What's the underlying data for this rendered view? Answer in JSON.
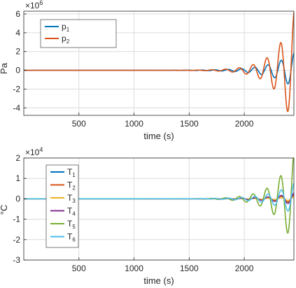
{
  "chart_data": [
    {
      "type": "line",
      "ylabel": "Pa",
      "xlabel": "time (s)",
      "y_multiplier": "×10",
      "y_exponent": "6",
      "xlim": [
        0,
        2450
      ],
      "ylim": [
        -4.8,
        6.3
      ],
      "x_ticks": [
        500,
        1000,
        1500,
        2000
      ],
      "y_ticks": [
        -4,
        -2,
        0,
        2,
        4,
        6
      ],
      "grid": true,
      "legend_position": "top-left",
      "series": [
        {
          "name": "p",
          "sub": "1",
          "color": "#0072BD",
          "envelope": {
            "start_time": 800,
            "tau": 200,
            "amplitude_at_end": 1.9
          },
          "period": 120,
          "x_end": 2450
        },
        {
          "name": "p",
          "sub": "2",
          "color": "#D95319",
          "envelope": {
            "start_time": 800,
            "tau": 158,
            "amplitude_at_end": 6.3
          },
          "period": 125,
          "x_end": 2450
        }
      ]
    },
    {
      "type": "line",
      "ylabel": "°C",
      "xlabel": "time (s)",
      "y_multiplier": "×10",
      "y_exponent": "4",
      "xlim": [
        0,
        2450
      ],
      "ylim": [
        -3,
        2
      ],
      "x_ticks": [
        500,
        1000,
        1500,
        2000
      ],
      "y_ticks": [
        -3,
        -2,
        -1,
        0,
        1,
        2
      ],
      "grid": true,
      "legend_position": "left",
      "series": [
        {
          "name": "T",
          "sub": "1",
          "color": "#0072BD",
          "envelope": {
            "start_time": 1200,
            "tau": 200,
            "amplitude_at_end": 0.15
          },
          "period": 120,
          "x_end": 2450
        },
        {
          "name": "T",
          "sub": "2",
          "color": "#D95319",
          "envelope": {
            "start_time": 1200,
            "tau": 200,
            "amplitude_at_end": 0.2
          },
          "period": 120,
          "x_end": 2450
        },
        {
          "name": "T",
          "sub": "3",
          "color": "#EDB120",
          "envelope": {
            "start_time": 1200,
            "tau": 200,
            "amplitude_at_end": 0.12
          },
          "period": 120,
          "x_end": 2450
        },
        {
          "name": "T",
          "sub": "4",
          "color": "#7E2F8E",
          "envelope": {
            "start_time": 1200,
            "tau": 200,
            "amplitude_at_end": 0.3
          },
          "period": 120,
          "x_end": 2450
        },
        {
          "name": "T",
          "sub": "5",
          "color": "#77AC30",
          "envelope": {
            "start_time": 900,
            "tau": 160,
            "amplitude_at_end": 2.4
          },
          "period": 125,
          "x_end": 2450
        },
        {
          "name": "T",
          "sub": "6",
          "color": "#4DBEEE",
          "envelope": {
            "start_time": 900,
            "tau": 190,
            "amplitude_at_end": 0.8
          },
          "period": 120,
          "x_end": 2450
        }
      ]
    }
  ]
}
